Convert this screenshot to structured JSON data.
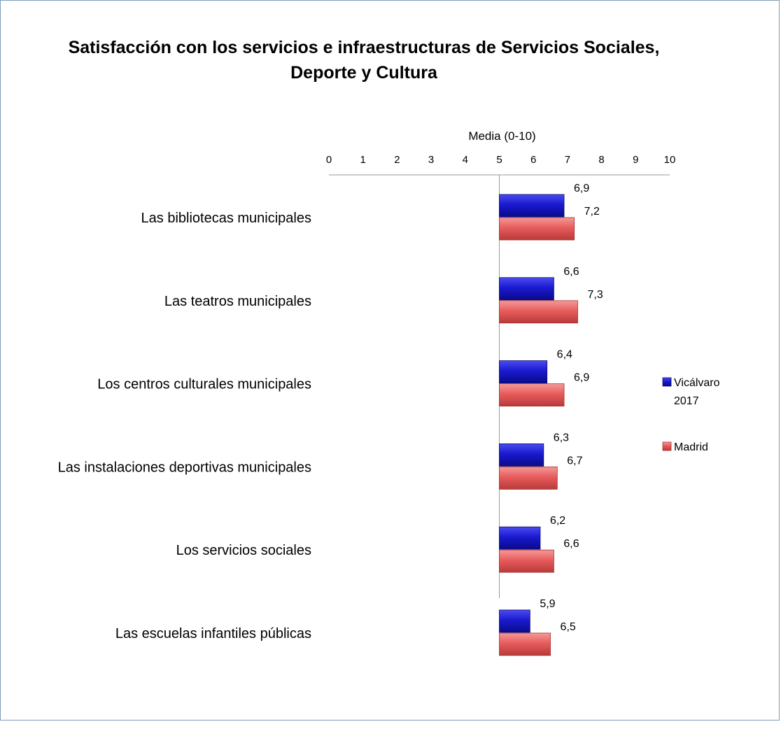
{
  "chart_data": {
    "type": "bar",
    "orientation": "horizontal",
    "title": [
      "Satisfacción con los servicios e infraestructuras de Servicios Sociales,",
      "Deporte y  Cultura"
    ],
    "axis_title": "Media (0-10)",
    "xlim": [
      0,
      10
    ],
    "xticks": [
      "0",
      "1",
      "2",
      "3",
      "4",
      "5",
      "6",
      "7",
      "8",
      "9",
      "10"
    ],
    "categories": [
      "Las bibliotecas municipales",
      "Las teatros municipales",
      "Los centros culturales municipales",
      "Las instalaciones deportivas municipales",
      "Los servicios sociales",
      "Las escuelas infantiles públicas"
    ],
    "series": [
      {
        "name": "Vicálvaro 2017",
        "legend_lines": [
          "Vicálvaro",
          "2017"
        ],
        "color": "#1a1ad0",
        "values": [
          6.9,
          6.6,
          6.4,
          6.3,
          6.2,
          5.9
        ],
        "labels": [
          "6,9",
          "6,6",
          "6,4",
          "6,3",
          "6,2",
          "5,9"
        ]
      },
      {
        "name": "Madrid",
        "legend_lines": [
          "Madrid"
        ],
        "color": "#e85c5c",
        "values": [
          7.2,
          7.3,
          6.9,
          6.7,
          6.6,
          6.5
        ],
        "labels": [
          "7,2",
          "7,3",
          "6,9",
          "6,7",
          "6,6",
          "6,5"
        ]
      }
    ],
    "baseline": 5,
    "legend_position": "right",
    "grid": false
  }
}
